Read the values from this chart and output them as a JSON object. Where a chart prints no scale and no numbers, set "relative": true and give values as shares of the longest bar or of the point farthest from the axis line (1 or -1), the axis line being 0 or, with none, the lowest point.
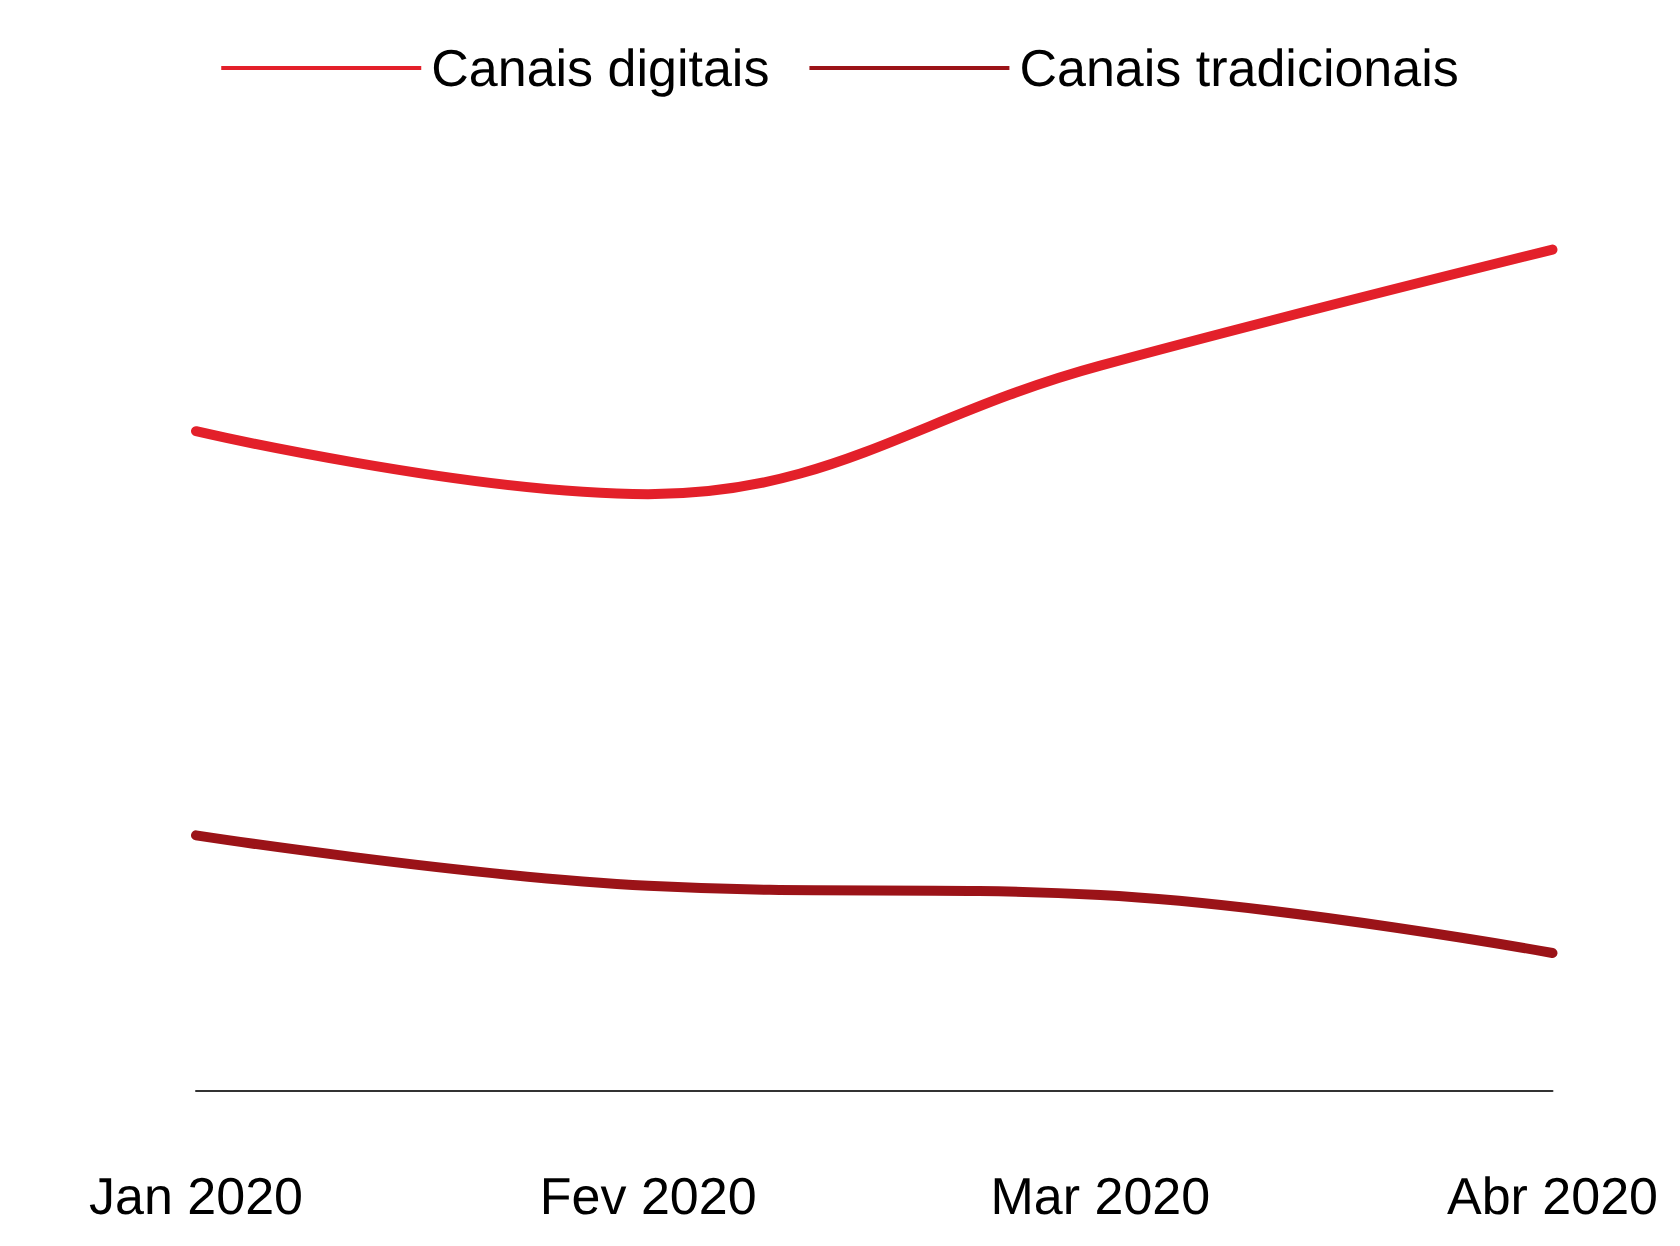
{
  "chart_data": {
    "type": "line",
    "relative": true,
    "legend": "top",
    "categories": [
      "Jan 2020",
      "Fev 2020",
      "Mar 2020",
      "Abr 2020"
    ],
    "series": [
      {
        "name": "Canais digitais",
        "color": "#e3202a",
        "values": [
          0.784,
          0.709,
          0.862,
          1
        ]
      },
      {
        "name": "Canais tradicionais",
        "color": "#9b1318",
        "values": [
          0.303,
          0.243,
          0.232,
          0.163
        ]
      }
    ]
  }
}
